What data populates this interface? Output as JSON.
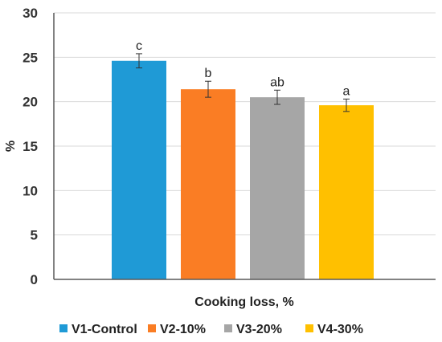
{
  "chart_data": {
    "type": "bar",
    "title": "",
    "xlabel": "Cooking loss, %",
    "ylabel": "%",
    "ylim": [
      0,
      30
    ],
    "yticks": [
      0,
      5,
      10,
      15,
      20,
      25,
      30
    ],
    "grid": true,
    "legend_position": "bottom",
    "categories": [
      "V1-Control",
      "V2-10%",
      "V3-20%",
      "V4-30%"
    ],
    "series": [
      {
        "name": "",
        "values": [
          24.6,
          21.4,
          20.5,
          19.6
        ],
        "errors": [
          0.8,
          0.9,
          0.8,
          0.7
        ],
        "labels": [
          "c",
          "b",
          "ab",
          "a"
        ],
        "colors": [
          "#1f9ad6",
          "#fa7d24",
          "#a6a6a6",
          "#ffc000"
        ]
      }
    ]
  }
}
